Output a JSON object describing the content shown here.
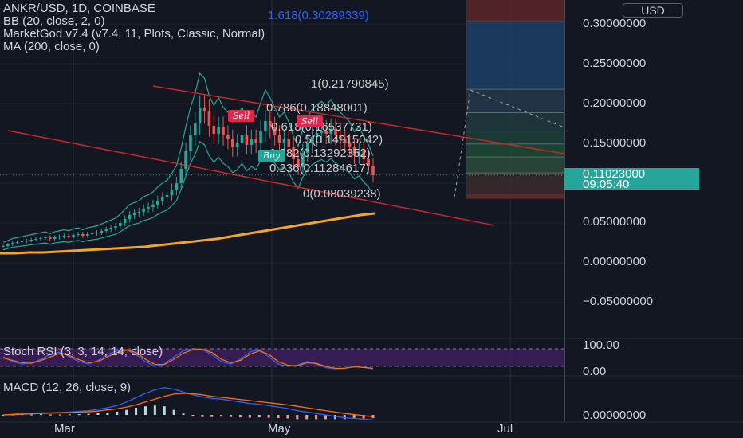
{
  "header": {
    "symbol_line": "ANKR/USD, 1D, COINBASE",
    "bb_line": "BB (20, close, 2, 0)",
    "mg_line": "MarketGod v7.4 (v7.4, 11, Plots, Classic, Normal)",
    "ma_line": "MA (200, close, 0)",
    "currency": "USD"
  },
  "price_box": {
    "price": "0.11023000",
    "countdown": "09:05:40"
  },
  "chart_data": {
    "type": "candlestick",
    "title": "ANKR/USD, 1D, COINBASE",
    "xlabel": "",
    "ylabel": "",
    "y_ticks": [
      "0.30000000",
      "0.25000000",
      "0.20000000",
      "0.15000000",
      "0.10000000",
      "0.05000000",
      "0.00000000",
      "−0.05000000"
    ],
    "x_ticks": [
      "Mar",
      "May",
      "Jul"
    ],
    "ylim": [
      -0.065,
      0.33
    ],
    "grid": true,
    "current_price": 0.11023,
    "close_series": [
      0.021,
      0.023,
      0.025,
      0.026,
      0.027,
      0.028,
      0.029,
      0.03,
      0.031,
      0.032,
      0.03,
      0.032,
      0.033,
      0.034,
      0.033,
      0.035,
      0.036,
      0.034,
      0.036,
      0.037,
      0.038,
      0.04,
      0.042,
      0.044,
      0.046,
      0.05,
      0.055,
      0.06,
      0.062,
      0.064,
      0.068,
      0.07,
      0.073,
      0.078,
      0.082,
      0.085,
      0.092,
      0.1,
      0.118,
      0.14,
      0.16,
      0.175,
      0.195,
      0.19,
      0.172,
      0.162,
      0.17,
      0.16,
      0.155,
      0.145,
      0.15,
      0.16,
      0.148,
      0.155,
      0.15,
      0.165,
      0.178,
      0.17,
      0.16,
      0.15,
      0.155,
      0.145,
      0.13,
      0.12,
      0.138,
      0.15,
      0.158,
      0.163,
      0.166,
      0.162,
      0.168,
      0.16,
      0.155,
      0.15,
      0.145,
      0.135,
      0.14,
      0.13,
      0.122,
      0.11
    ],
    "ma200_series": [
      0.012,
      0.012,
      0.013,
      0.013,
      0.014,
      0.015,
      0.016,
      0.017,
      0.018,
      0.019,
      0.02,
      0.022,
      0.024,
      0.026,
      0.028,
      0.03,
      0.033,
      0.036,
      0.039,
      0.042,
      0.045,
      0.048,
      0.051,
      0.054,
      0.057,
      0.06,
      0.062
    ],
    "fib_levels": [
      {
        "label": "1.618(0.30289339)",
        "value": 0.30289339
      },
      {
        "label": "1(0.21790845)",
        "value": 0.21790845
      },
      {
        "label": "0.786(0.18848001)",
        "value": 0.18848001
      },
      {
        "label": "0.618(0.16537731)",
        "value": 0.16537731
      },
      {
        "label": "0.5(0.14915042)",
        "value": 0.14915042
      },
      {
        "label": "0.382(0.13292352)",
        "value": 0.13292352
      },
      {
        "label": "0.236(0.11284617)",
        "value": 0.11284617
      },
      {
        "label": "0(0.08039238)",
        "value": 0.08039238
      }
    ],
    "signals": [
      {
        "label": "Sell",
        "color": "#e0284e"
      },
      {
        "label": "Sell",
        "color": "#e0284e"
      },
      {
        "label": "Buy",
        "color": "#26a69a"
      }
    ]
  },
  "stoch_rsi": {
    "label": "Stoch RSI (3, 3, 14, 14, close)",
    "ticks": [
      "100.00",
      "0.00"
    ],
    "k_series": [
      60,
      40,
      30,
      35,
      50,
      70,
      80,
      60,
      40,
      30,
      45,
      70,
      85,
      90,
      70,
      40,
      20,
      30,
      60,
      85,
      95,
      90,
      70,
      40,
      30,
      50,
      80,
      90,
      60,
      30,
      20,
      25,
      40,
      30,
      15,
      10,
      12,
      20,
      15,
      10
    ],
    "d_series": [
      55,
      45,
      35,
      33,
      45,
      60,
      75,
      65,
      48,
      35,
      40,
      60,
      78,
      88,
      78,
      50,
      28,
      28,
      50,
      75,
      90,
      92,
      78,
      50,
      35,
      45,
      70,
      85,
      70,
      40,
      25,
      22,
      35,
      33,
      20,
      12,
      12,
      18,
      16,
      12
    ]
  },
  "macd": {
    "label": "MACD (12, 26, close, 9)",
    "ticks": [
      "0.00000000"
    ],
    "macd_series": [
      0.0,
      0.1,
      0.2,
      0.2,
      0.3,
      0.3,
      0.35,
      0.4,
      0.5,
      0.6,
      0.8,
      1.0,
      1.3,
      1.8,
      2.4,
      3.0,
      3.5,
      3.8,
      3.6,
      3.2,
      2.8,
      2.5,
      2.3,
      2.2,
      2.0,
      1.8,
      1.6,
      1.5,
      1.3,
      1.1,
      0.9,
      0.6,
      0.4,
      0.2,
      0.0,
      -0.2,
      -0.4,
      -0.5,
      -0.6,
      -0.7
    ],
    "signal_series": [
      0.0,
      0.05,
      0.1,
      0.15,
      0.2,
      0.25,
      0.3,
      0.33,
      0.4,
      0.45,
      0.55,
      0.7,
      0.85,
      1.1,
      1.4,
      1.8,
      2.2,
      2.6,
      2.9,
      3.0,
      2.95,
      2.8,
      2.6,
      2.45,
      2.3,
      2.15,
      2.0,
      1.85,
      1.7,
      1.55,
      1.4,
      1.2,
      1.0,
      0.8,
      0.6,
      0.4,
      0.2,
      0.05,
      -0.1,
      -0.25
    ]
  },
  "colors": {
    "background": "#131722",
    "up": "#26a69a",
    "down": "#ef5350",
    "ma200": "#f5a623",
    "trendline": "#c62828",
    "price_box": "#26a69a"
  }
}
